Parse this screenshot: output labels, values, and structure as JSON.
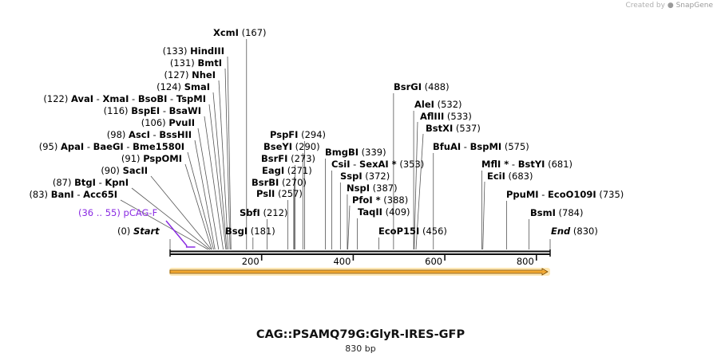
{
  "credit": {
    "prefix": "Created by",
    "brand": "SnapGene"
  },
  "title": "CAG::PSAMQ79G:GlyR-IRES-GFP",
  "length_label": "830 bp",
  "colors": {
    "feature": "#8a2be2",
    "arrow_fill": "#f5a623",
    "arrow_glow": "#fde7b4"
  },
  "chart_data": {
    "type": "linear-map",
    "sequence_length": 830,
    "ticks": [
      200,
      400,
      600,
      800
    ],
    "ends": [
      {
        "pos": 0,
        "pos_label": "(0)",
        "name": "Start"
      },
      {
        "pos": 830,
        "pos_label": "(830)",
        "name": "End"
      }
    ],
    "feature_labels": [
      {
        "range": "(36 .. 55)",
        "name": "pCAG-F",
        "start": 36,
        "end": 55
      }
    ],
    "sites": [
      {
        "pos": 83,
        "pos_label": "(83)",
        "names": [
          "BanI",
          "Acc65I"
        ]
      },
      {
        "pos": 87,
        "pos_label": "(87)",
        "names": [
          "BtgI",
          "KpnI"
        ]
      },
      {
        "pos": 90,
        "pos_label": "(90)",
        "names": [
          "SacII"
        ]
      },
      {
        "pos": 91,
        "pos_label": "(91)",
        "names": [
          "PspOMI"
        ]
      },
      {
        "pos": 95,
        "pos_label": "(95)",
        "names": [
          "ApaI",
          "BaeGI",
          "Bme1580I"
        ]
      },
      {
        "pos": 98,
        "pos_label": "(98)",
        "names": [
          "AscI",
          "BssHII"
        ]
      },
      {
        "pos": 106,
        "pos_label": "(106)",
        "names": [
          "PvuII"
        ]
      },
      {
        "pos": 116,
        "pos_label": "(116)",
        "names": [
          "BspEI",
          "BsaWI"
        ]
      },
      {
        "pos": 122,
        "pos_label": "(122)",
        "names": [
          "AvaI",
          "XmaI",
          "BsoBI",
          "TspMI"
        ]
      },
      {
        "pos": 124,
        "pos_label": "(124)",
        "names": [
          "SmaI"
        ]
      },
      {
        "pos": 127,
        "pos_label": "(127)",
        "names": [
          "NheI"
        ]
      },
      {
        "pos": 131,
        "pos_label": "(131)",
        "names": [
          "BmtI"
        ]
      },
      {
        "pos": 133,
        "pos_label": "(133)",
        "names": [
          "HindIII"
        ]
      },
      {
        "pos": 167,
        "pos_label": "(167)",
        "names": [
          "XcmI"
        ]
      },
      {
        "pos": 181,
        "pos_label": "(181)",
        "names": [
          "BsgI"
        ]
      },
      {
        "pos": 212,
        "pos_label": "(212)",
        "names": [
          "SbfI"
        ]
      },
      {
        "pos": 257,
        "pos_label": "(257)",
        "names": [
          "PslI"
        ]
      },
      {
        "pos": 270,
        "pos_label": "(270)",
        "names": [
          "BsrBI"
        ]
      },
      {
        "pos": 271,
        "pos_label": "(271)",
        "names": [
          "EagI"
        ]
      },
      {
        "pos": 273,
        "pos_label": "(273)",
        "names": [
          "BsrFI"
        ]
      },
      {
        "pos": 290,
        "pos_label": "(290)",
        "names": [
          "BseYI"
        ]
      },
      {
        "pos": 294,
        "pos_label": "(294)",
        "names": [
          "PspFI"
        ]
      },
      {
        "pos": 339,
        "pos_label": "(339)",
        "names": [
          "BmgBI"
        ]
      },
      {
        "pos": 353,
        "pos_label": "(353)",
        "names": [
          "CsiI",
          "SexAI *"
        ]
      },
      {
        "pos": 372,
        "pos_label": "(372)",
        "names": [
          "SspI"
        ]
      },
      {
        "pos": 387,
        "pos_label": "(387)",
        "names": [
          "NspI"
        ]
      },
      {
        "pos": 388,
        "pos_label": "(388)",
        "names": [
          "PfoI *"
        ]
      },
      {
        "pos": 409,
        "pos_label": "(409)",
        "names": [
          "TaqII"
        ]
      },
      {
        "pos": 456,
        "pos_label": "(456)",
        "names": [
          "EcoP15I"
        ]
      },
      {
        "pos": 488,
        "pos_label": "(488)",
        "names": [
          "BsrGI"
        ]
      },
      {
        "pos": 532,
        "pos_label": "(532)",
        "names": [
          "AleI"
        ]
      },
      {
        "pos": 533,
        "pos_label": "(533)",
        "names": [
          "AflIII"
        ]
      },
      {
        "pos": 537,
        "pos_label": "(537)",
        "names": [
          "BstXI"
        ]
      },
      {
        "pos": 575,
        "pos_label": "(575)",
        "names": [
          "BfuAI",
          "BspMI"
        ]
      },
      {
        "pos": 681,
        "pos_label": "(681)",
        "names": [
          "MflI *",
          "BstYI"
        ]
      },
      {
        "pos": 683,
        "pos_label": "(683)",
        "names": [
          "EciI"
        ]
      },
      {
        "pos": 735,
        "pos_label": "(735)",
        "names": [
          "PpuMI",
          "EcoO109I"
        ]
      },
      {
        "pos": 784,
        "pos_label": "(784)",
        "names": [
          "BsmI"
        ]
      }
    ]
  }
}
